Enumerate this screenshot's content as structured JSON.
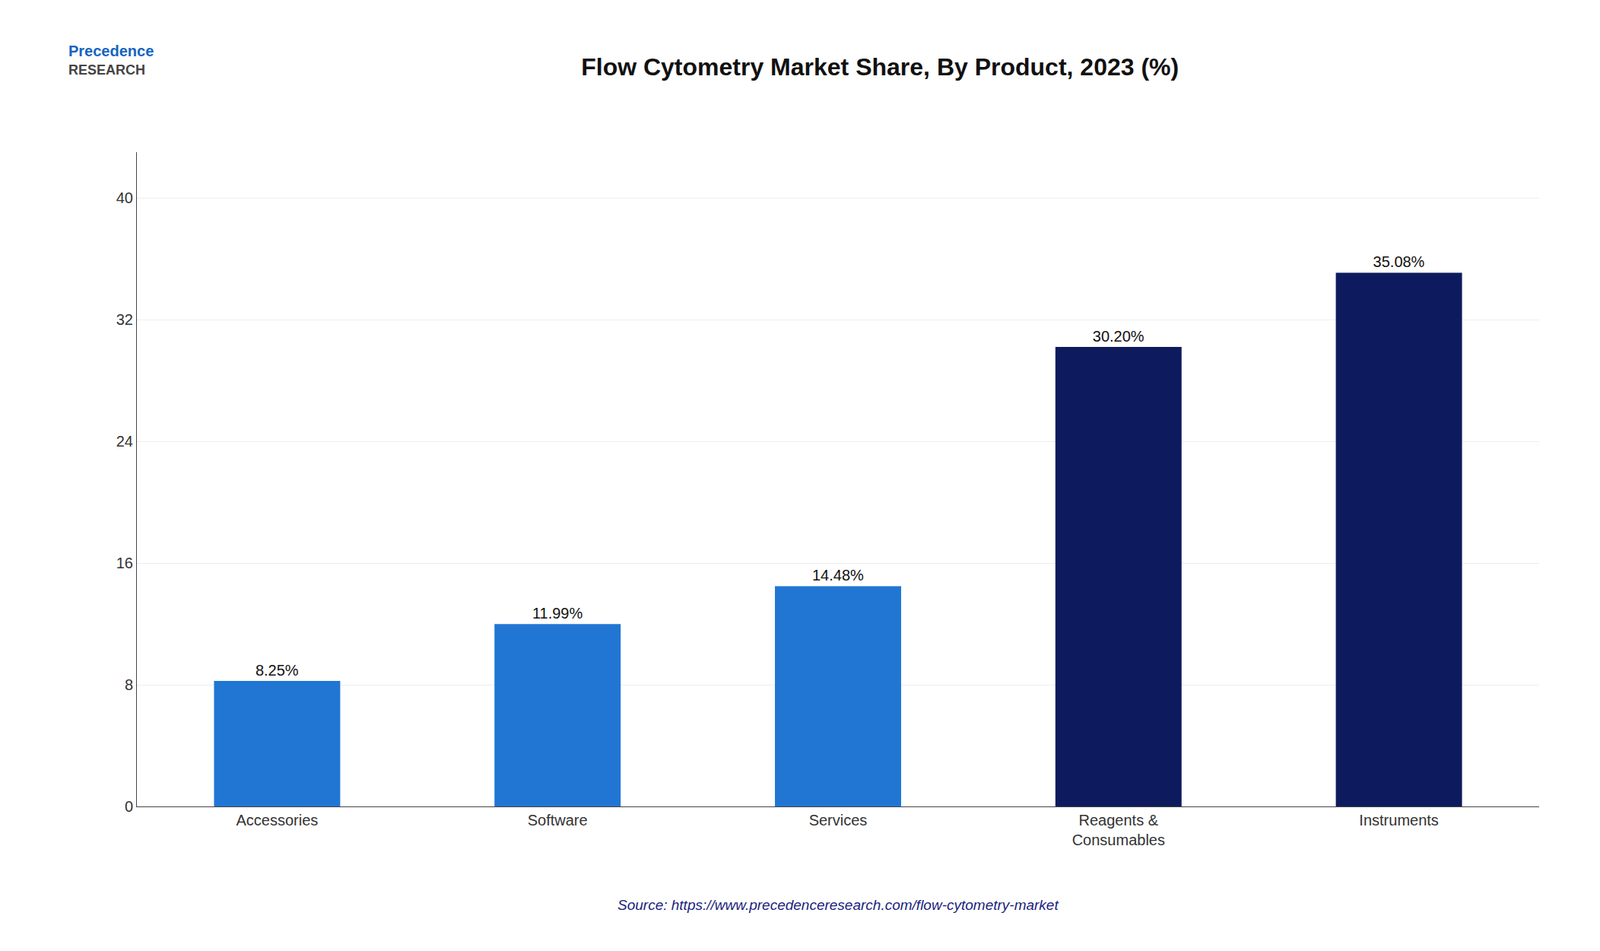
{
  "chart_data": {
    "type": "bar",
    "title": "Flow Cytometry Market Share, By Product, 2023 (%)",
    "categories": [
      "Accessories",
      "Software",
      "Services",
      "Reagents &\nConsumables",
      "Instruments"
    ],
    "values": [
      8.25,
      11.99,
      14.48,
      30.2,
      35.08
    ],
    "value_labels": [
      "8.25%",
      "11.99%",
      "14.48%",
      "30.20%",
      "35.08%"
    ],
    "data_labels": true,
    "colors": [
      "#2176d4",
      "#2176d4",
      "#2176d4",
      "#0d1b5e",
      "#0d1b5e"
    ],
    "ylim": [
      0,
      43
    ],
    "yticks": [
      0,
      8,
      16,
      24,
      32,
      40
    ],
    "grid": true,
    "annotations": [
      "Source: https://www.precedenceresearch.com/flow-cytometry-market",
      "Precedence",
      "RESEARCH"
    ]
  }
}
